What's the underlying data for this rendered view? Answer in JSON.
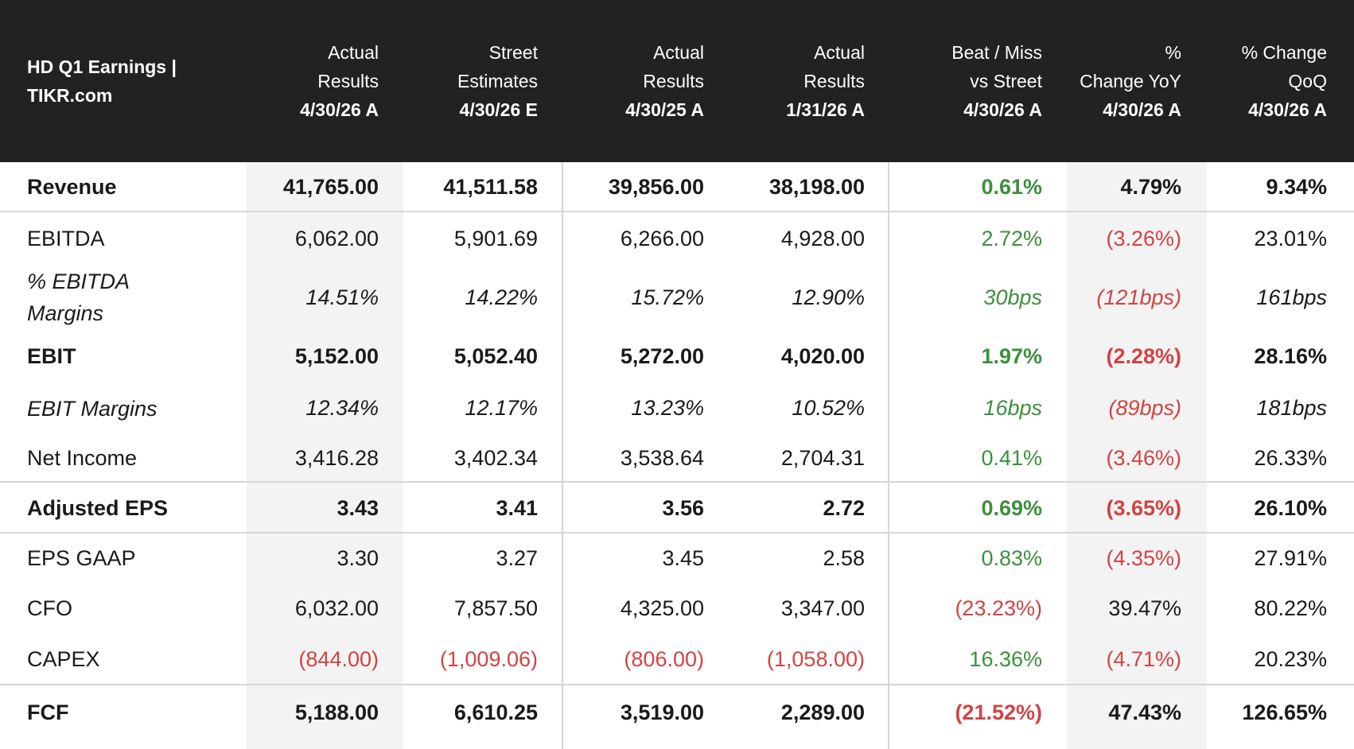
{
  "chart_data": {
    "type": "table",
    "title": "HD Q1 Earnings | TIKR.com",
    "columns": [
      {
        "line1": "Actual",
        "line2": "Results",
        "date": "4/30/26 A"
      },
      {
        "line1": "Street",
        "line2": "Estimates",
        "date": "4/30/26 E"
      },
      {
        "line1": "Actual",
        "line2": "Results",
        "date": "4/30/25 A"
      },
      {
        "line1": "Actual",
        "line2": "Results",
        "date": "1/31/26 A"
      },
      {
        "line1": "Beat / Miss",
        "line2": "vs Street",
        "date": "4/30/26 A"
      },
      {
        "line1": "%",
        "line2": "Change YoY",
        "date": "4/30/26 A"
      },
      {
        "line1": "% Change",
        "line2": "QoQ",
        "date": "4/30/26 A"
      }
    ],
    "rows": [
      {
        "label": "Revenue",
        "values": [
          "41,765.00",
          "41,511.58",
          "39,856.00",
          "38,198.00",
          "0.61%",
          "4.79%",
          "9.34%"
        ]
      },
      {
        "label": "EBITDA",
        "values": [
          "6,062.00",
          "5,901.69",
          "6,266.00",
          "4,928.00",
          "2.72%",
          "(3.26%)",
          "23.01%"
        ]
      },
      {
        "label": "% EBITDA Margins",
        "values": [
          "14.51%",
          "14.22%",
          "15.72%",
          "12.90%",
          "30bps",
          "(121bps)",
          "161bps"
        ]
      },
      {
        "label": "EBIT",
        "values": [
          "5,152.00",
          "5,052.40",
          "5,272.00",
          "4,020.00",
          "1.97%",
          "(2.28%)",
          "28.16%"
        ]
      },
      {
        "label": "EBIT Margins",
        "values": [
          "12.34%",
          "12.17%",
          "13.23%",
          "10.52%",
          "16bps",
          "(89bps)",
          "181bps"
        ]
      },
      {
        "label": "Net Income",
        "values": [
          "3,416.28",
          "3,402.34",
          "3,538.64",
          "2,704.31",
          "0.41%",
          "(3.46%)",
          "26.33%"
        ]
      },
      {
        "label": "Adjusted EPS",
        "values": [
          "3.43",
          "3.41",
          "3.56",
          "2.72",
          "0.69%",
          "(3.65%)",
          "26.10%"
        ]
      },
      {
        "label": "EPS GAAP",
        "values": [
          "3.30",
          "3.27",
          "3.45",
          "2.58",
          "0.83%",
          "(4.35%)",
          "27.91%"
        ]
      },
      {
        "label": "CFO",
        "values": [
          "6,032.00",
          "7,857.50",
          "4,325.00",
          "3,347.00",
          "(23.23%)",
          "39.47%",
          "80.22%"
        ]
      },
      {
        "label": "CAPEX",
        "values": [
          "(844.00)",
          "(1,009.06)",
          "(806.00)",
          "(1,058.00)",
          "16.36%",
          "(4.71%)",
          "20.23%"
        ]
      },
      {
        "label": "FCF",
        "values": [
          "5,188.00",
          "6,610.25",
          "3,519.00",
          "2,289.00",
          "(21.52%)",
          "47.43%",
          "126.65%"
        ]
      }
    ],
    "colors": {
      "header_bg": "#222222",
      "positive": "#3e8f3e",
      "negative": "#d24343",
      "shade": "#f3f3f3"
    }
  }
}
